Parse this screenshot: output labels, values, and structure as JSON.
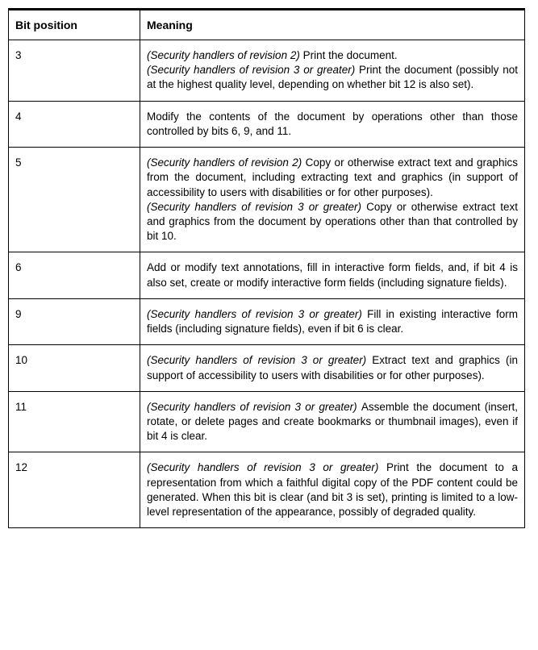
{
  "table": {
    "columns": {
      "bit": "Bit position",
      "meaning": "Meaning"
    },
    "col_widths": {
      "bit": 163,
      "meaning": 477
    },
    "border_color": "#000000",
    "top_border_width": 3,
    "font_family": "Arial",
    "header_fontsize": 14,
    "body_fontsize": 13.5,
    "background_color": "#ffffff",
    "text_color": "#000000",
    "rows": [
      {
        "bit": "3",
        "segments": [
          {
            "italic": true,
            "text": "(Security handlers of revision 2) "
          },
          {
            "italic": false,
            "text": "Print the document."
          },
          {
            "break": true
          },
          {
            "italic": true,
            "text": "(Security handlers of revision 3 or greater) "
          },
          {
            "italic": false,
            "text": "Print the document (possibly not at the highest quality level, depending on whether bit 12 is also set)."
          }
        ]
      },
      {
        "bit": "4",
        "segments": [
          {
            "italic": false,
            "text": "Modify the contents of the document by operations other than those controlled by bits 6, 9, and 11."
          }
        ]
      },
      {
        "bit": "5",
        "segments": [
          {
            "italic": true,
            "text": "(Security handlers of revision 2) "
          },
          {
            "italic": false,
            "text": "Copy or otherwise extract text and graphics from the document, including extracting text and graphics (in support of accessibility to users with disabilities or for other purposes)."
          },
          {
            "break": true
          },
          {
            "italic": true,
            "text": "(Security handlers of revision 3 or greater) "
          },
          {
            "italic": false,
            "text": "Copy or otherwise extract text and graphics from the document by operations other than that controlled by bit 10."
          }
        ]
      },
      {
        "bit": "6",
        "segments": [
          {
            "italic": false,
            "text": "Add or modify text annotations, fill in interactive form fields, and, if bit 4 is also set, create or modify interactive form fields (including signature fields)."
          }
        ]
      },
      {
        "bit": "9",
        "segments": [
          {
            "italic": true,
            "text": "(Security handlers of revision 3 or greater) "
          },
          {
            "italic": false,
            "text": "Fill in existing interactive form fields (including signature fields), even if bit 6 is clear."
          }
        ]
      },
      {
        "bit": "10",
        "segments": [
          {
            "italic": true,
            "text": "(Security handlers of revision 3 or greater) "
          },
          {
            "italic": false,
            "text": "Extract text and graphics (in support of accessibility to users with disabilities or for other purposes)."
          }
        ]
      },
      {
        "bit": "11",
        "segments": [
          {
            "italic": true,
            "text": "(Security handlers of revision 3 or greater) "
          },
          {
            "italic": false,
            "text": "Assemble the document (insert, rotate, or delete pages and create bookmarks or thumbnail images), even if bit 4 is clear."
          }
        ]
      },
      {
        "bit": "12",
        "segments": [
          {
            "italic": true,
            "text": "(Security handlers of revision 3 or greater) "
          },
          {
            "italic": false,
            "text": "Print the document to a representation from which a faithful digital copy of the PDF content could be generated. When this bit is clear (and bit 3 is set), printing is limited to a low-level representation of the appearance, possibly of degraded quality."
          }
        ]
      }
    ]
  }
}
